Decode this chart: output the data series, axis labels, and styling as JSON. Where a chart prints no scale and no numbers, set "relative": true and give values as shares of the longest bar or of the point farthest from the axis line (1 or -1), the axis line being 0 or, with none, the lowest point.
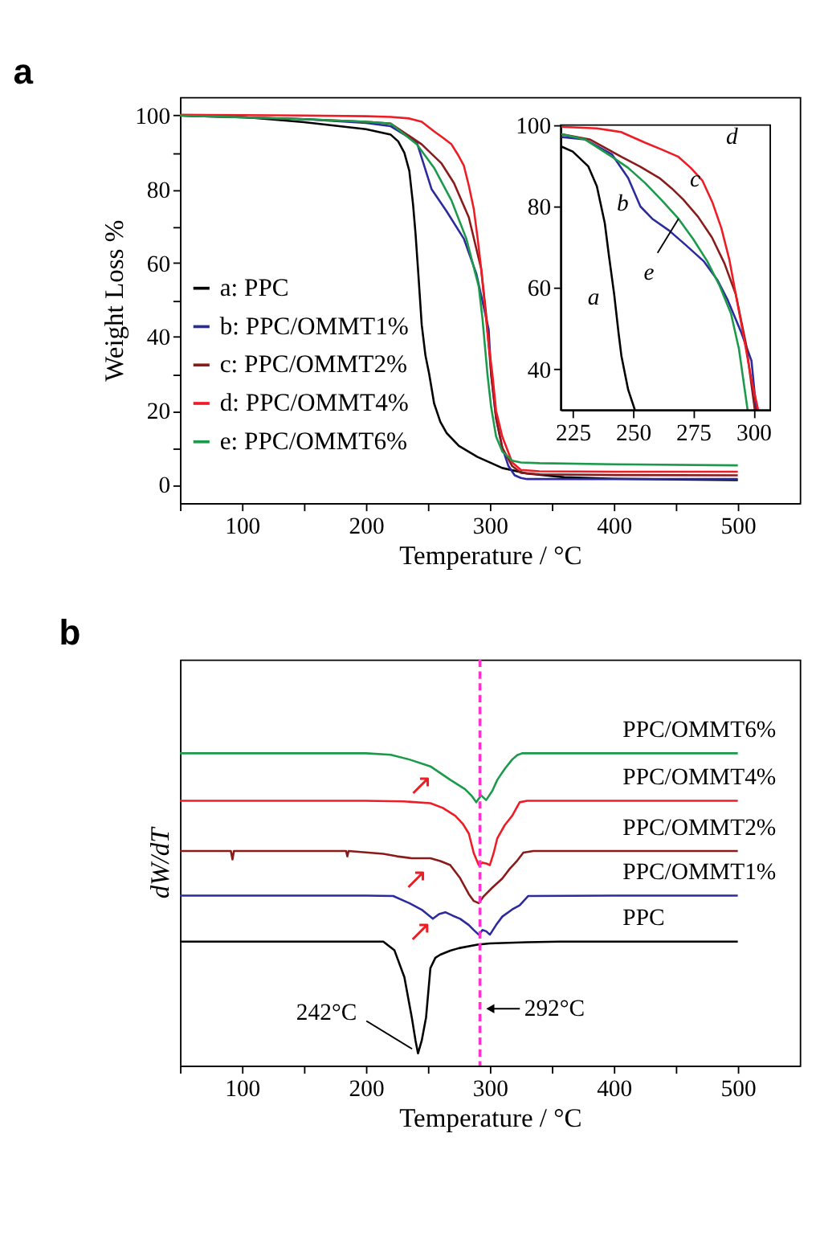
{
  "chart_data": [
    {
      "type": "line",
      "title": "a",
      "xlabel": "Temperature / °C",
      "ylabel": "Weight Loss %",
      "xlim": [
        50,
        550
      ],
      "xticks": [
        {
          "value": 50,
          "label": null
        },
        100,
        {
          "value": 150,
          "label": null
        },
        200,
        {
          "value": 250,
          "label": null
        },
        300,
        {
          "value": 350,
          "label": null
        },
        400,
        {
          "value": 450,
          "label": null
        },
        500
      ],
      "ylim": [
        -5,
        105
      ],
      "yticks": [
        0,
        {
          "value": 10,
          "label": null
        },
        20,
        {
          "value": 30,
          "label": null
        },
        40,
        {
          "value": 50,
          "label": null
        },
        60,
        {
          "value": 70,
          "label": null
        },
        80,
        {
          "value": 90,
          "label": null
        },
        100
      ],
      "legend": "left",
      "series": [
        {
          "name": "a: PPC",
          "color": "#000000",
          "x": [
            50,
            100,
            150,
            200,
            220,
            226,
            231,
            235,
            238,
            240,
            242,
            245,
            248,
            251,
            255,
            260,
            265,
            275,
            290,
            310,
            330,
            360,
            400,
            450,
            500
          ],
          "values": [
            100,
            99.6,
            98.2,
            96.3,
            94.8,
            93,
            89.9,
            85,
            75.9,
            68,
            58.4,
            43.3,
            35,
            30,
            22,
            17,
            14,
            10.5,
            7.5,
            4.5,
            3,
            2,
            1.6,
            1.4,
            1.2
          ]
        },
        {
          "name": "b: PPC/OMMT1%",
          "color": "#2b2b9e",
          "x": [
            50,
            100,
            150,
            200,
            220,
            241,
            253,
            265,
            279,
            289,
            299,
            301,
            305,
            310,
            315,
            320,
            325,
            330,
            400,
            500
          ],
          "values": [
            100,
            99.5,
            99,
            98,
            97.1,
            92.8,
            80,
            74.1,
            66.6,
            57.2,
            42.1,
            30,
            18,
            10,
            5,
            2.5,
            1.8,
            1.5,
            1.5,
            1.5
          ]
        },
        {
          "name": "c: PPC/OMMT2%",
          "color": "#8b1a1a",
          "x": [
            50,
            100,
            150,
            200,
            220,
            245,
            261,
            271,
            283,
            293,
            297,
            301,
            305,
            310,
            318,
            325,
            340,
            400,
            500
          ],
          "values": [
            100,
            99.5,
            99,
            98.3,
            97.8,
            92.2,
            87,
            81.7,
            72.4,
            58.4,
            46,
            30,
            18,
            10,
            5,
            3.2,
            2.8,
            2.6,
            2.5
          ]
        },
        {
          "name": "d: PPC/OMMT4%",
          "color": "#ee1c24",
          "x": [
            50,
            100,
            150,
            200,
            220,
            235,
            245,
            255,
            262,
            269,
            274,
            279,
            283,
            287,
            290,
            293,
            296,
            299,
            302,
            305,
            310,
            318,
            325,
            340,
            400,
            500
          ],
          "values": [
            100.2,
            100.1,
            100,
            99.8,
            99.6,
            99.2,
            98.3,
            95.7,
            94,
            92.2,
            89.5,
            86.4,
            81,
            74.7,
            67,
            58.4,
            48,
            38,
            30,
            20,
            13,
            6,
            4,
            3.6,
            3.5,
            3.5
          ]
        },
        {
          "name": "e: PPC/OMMT6%",
          "color": "#1a9a4a",
          "x": [
            50,
            100,
            150,
            200,
            220,
            241,
            255,
            269,
            281,
            291,
            294,
            298,
            301,
            305,
            310,
            318,
            325,
            340,
            400,
            500
          ],
          "values": [
            100,
            99.5,
            99,
            98.3,
            97.8,
            92.2,
            85.8,
            77,
            66.6,
            53.7,
            45,
            30,
            21,
            13,
            9,
            6.5,
            6,
            5.8,
            5.5,
            5.2
          ]
        }
      ]
    },
    {
      "type": "line",
      "xlim": [
        220,
        307
      ],
      "xticks": [
        225,
        250,
        275,
        300
      ],
      "ylim": [
        30,
        100
      ],
      "yticks": [
        40,
        60,
        80,
        100
      ],
      "annotations": [
        {
          "text": "a",
          "x": 242.2,
          "y": 58.4
        },
        {
          "text": "b",
          "x": 253.1,
          "y": 80
        },
        {
          "text": "c",
          "x": 270.9,
          "y": 81.7
        },
        {
          "text": "d",
          "x": 278.8,
          "y": 86.4
        },
        {
          "text": "e",
          "x": 268.9,
          "y": 77
        }
      ],
      "series": [
        {
          "color": "#000000",
          "x": [
            220,
            225,
            231.4,
            235,
            238.3,
            240,
            242.2,
            244,
            245.2,
            248,
            250.8
          ],
          "values": [
            94.8,
            93.5,
            89.9,
            85,
            75.9,
            68,
            58.4,
            49,
            43.3,
            35,
            30
          ]
        },
        {
          "color": "#2b2b9e",
          "x": [
            220,
            230,
            241.3,
            248,
            253.1,
            258,
            265,
            272,
            279.3,
            285,
            289.2,
            295,
            299.2,
            301.2
          ],
          "values": [
            97.1,
            96.5,
            92.8,
            87,
            80,
            77,
            74.1,
            70.5,
            66.6,
            62,
            57.2,
            49,
            42.1,
            30
          ]
        },
        {
          "color": "#8b1a1a",
          "x": [
            220,
            232,
            245.2,
            253,
            261,
            266,
            270.9,
            277,
            282.8,
            288,
            292.7,
            297,
            300.6
          ],
          "values": [
            97.8,
            96.5,
            92.2,
            89.8,
            87,
            84.5,
            81.7,
            77.5,
            72.4,
            66,
            58.4,
            46,
            30
          ]
        },
        {
          "color": "#ee1c24",
          "x": [
            220,
            235,
            245,
            255,
            262,
            268.9,
            274,
            278.8,
            283,
            286.7,
            290,
            292.7,
            296,
            299,
            302
          ],
          "values": [
            99.6,
            99.2,
            98.3,
            95.7,
            94,
            92.2,
            89.5,
            86.4,
            81,
            74.7,
            67,
            58.4,
            48,
            38,
            30
          ]
        },
        {
          "color": "#1a9a4a",
          "x": [
            220,
            230,
            241.3,
            248,
            255,
            262,
            268.9,
            275,
            280.8,
            286,
            290.7,
            294,
            297.6
          ],
          "values": [
            97.8,
            96.5,
            92.2,
            89.5,
            85.8,
            81.5,
            77,
            72,
            66.6,
            60.5,
            53.7,
            45,
            30
          ]
        }
      ]
    },
    {
      "type": "line",
      "title": "b",
      "xlabel": "Temperature / °C",
      "ylabel": "dW/dT",
      "relative": true,
      "xlim": [
        50,
        550
      ],
      "xticks": [
        {
          "value": 50,
          "label": null
        },
        100,
        {
          "value": 150,
          "label": null
        },
        200,
        {
          "value": 250,
          "label": null
        },
        300,
        {
          "value": 350,
          "label": null
        },
        400,
        {
          "value": 450,
          "label": null
        },
        500
      ],
      "ref_lines": [
        {
          "axis": "x",
          "value": 292,
          "label": "292°C",
          "color": "#ff33cc",
          "line_style": "dashed"
        }
      ],
      "annotations": [
        {
          "text": "242°C",
          "x": 242,
          "y": 0.039
        },
        {
          "text": "↗",
          "x": 250.4,
          "y": 0.951
        },
        {
          "text": "↗",
          "x": 246.5,
          "y": 0.65
        },
        {
          "text": "↗",
          "x": 250,
          "y": 0.485
        }
      ],
      "series": [
        {
          "name": "PPC",
          "color": "#000000",
          "x": [
            50,
            100,
            150,
            200,
            214,
            223,
            231,
            237,
            240,
            242,
            245,
            248.5,
            252,
            256,
            260,
            268,
            275,
            290,
            300,
            330,
            356,
            400,
            500
          ],
          "values": [
            0.397,
            0.397,
            0.397,
            0.397,
            0.397,
            0.369,
            0.283,
            0.154,
            0.08,
            0.039,
            0.08,
            0.154,
            0.312,
            0.345,
            0.355,
            0.368,
            0.376,
            0.387,
            0.391,
            0.395,
            0.397,
            0.397,
            0.397
          ]
        },
        {
          "name": "PPC/OMMT1%",
          "color": "#2b2b9e",
          "x": [
            50,
            100,
            150,
            200,
            222,
            235,
            245,
            254,
            259,
            264,
            270,
            276,
            283,
            287,
            291,
            294,
            297,
            300,
            305,
            310,
            318,
            324,
            331,
            400,
            500
          ],
          "values": [
            0.544,
            0.544,
            0.544,
            0.544,
            0.543,
            0.52,
            0.499,
            0.47,
            0.485,
            0.491,
            0.48,
            0.47,
            0.45,
            0.434,
            0.419,
            0.434,
            0.43,
            0.419,
            0.45,
            0.477,
            0.5,
            0.513,
            0.543,
            0.544,
            0.544
          ]
        },
        {
          "name": "PPC/OMMT2%",
          "color": "#8b1a1a",
          "x": [
            50,
            91,
            92.3,
            93.5,
            150,
            184,
            185,
            186,
            214,
            225,
            237,
            252,
            260,
            268,
            276,
            283,
            287,
            291,
            295,
            302,
            310,
            316,
            322,
            327,
            335,
            400,
            500
          ],
          "values": [
            0.687,
            0.687,
            0.66,
            0.687,
            0.687,
            0.687,
            0.67,
            0.687,
            0.678,
            0.67,
            0.664,
            0.664,
            0.655,
            0.642,
            0.6,
            0.549,
            0.527,
            0.52,
            0.542,
            0.57,
            0.599,
            0.63,
            0.656,
            0.682,
            0.687,
            0.687,
            0.687
          ]
        },
        {
          "name": "PPC/OMMT4%",
          "color": "#ee1c24",
          "x": [
            50,
            100,
            150,
            200,
            230,
            252,
            262,
            272,
            278,
            283,
            287,
            291,
            294,
            297,
            300,
            303,
            306,
            312,
            318,
            324,
            330,
            400,
            500
          ],
          "values": [
            0.848,
            0.848,
            0.848,
            0.848,
            0.846,
            0.84,
            0.825,
            0.8,
            0.775,
            0.743,
            0.68,
            0.642,
            0.65,
            0.647,
            0.642,
            0.68,
            0.728,
            0.77,
            0.8,
            0.843,
            0.848,
            0.848,
            0.848
          ]
        },
        {
          "name": "PPC/OMMT6%",
          "color": "#1a9a4a",
          "x": [
            50,
            100,
            150,
            200,
            220,
            235,
            252,
            268,
            280,
            285,
            289,
            293,
            297,
            302,
            306,
            312,
            318,
            322,
            326,
            400,
            500
          ],
          "values": [
            1,
            1,
            1,
            1,
            0.995,
            0.98,
            0.958,
            0.915,
            0.885,
            0.865,
            0.843,
            0.865,
            0.85,
            0.88,
            0.915,
            0.95,
            0.98,
            0.994,
            1,
            1,
            1
          ]
        }
      ]
    }
  ]
}
